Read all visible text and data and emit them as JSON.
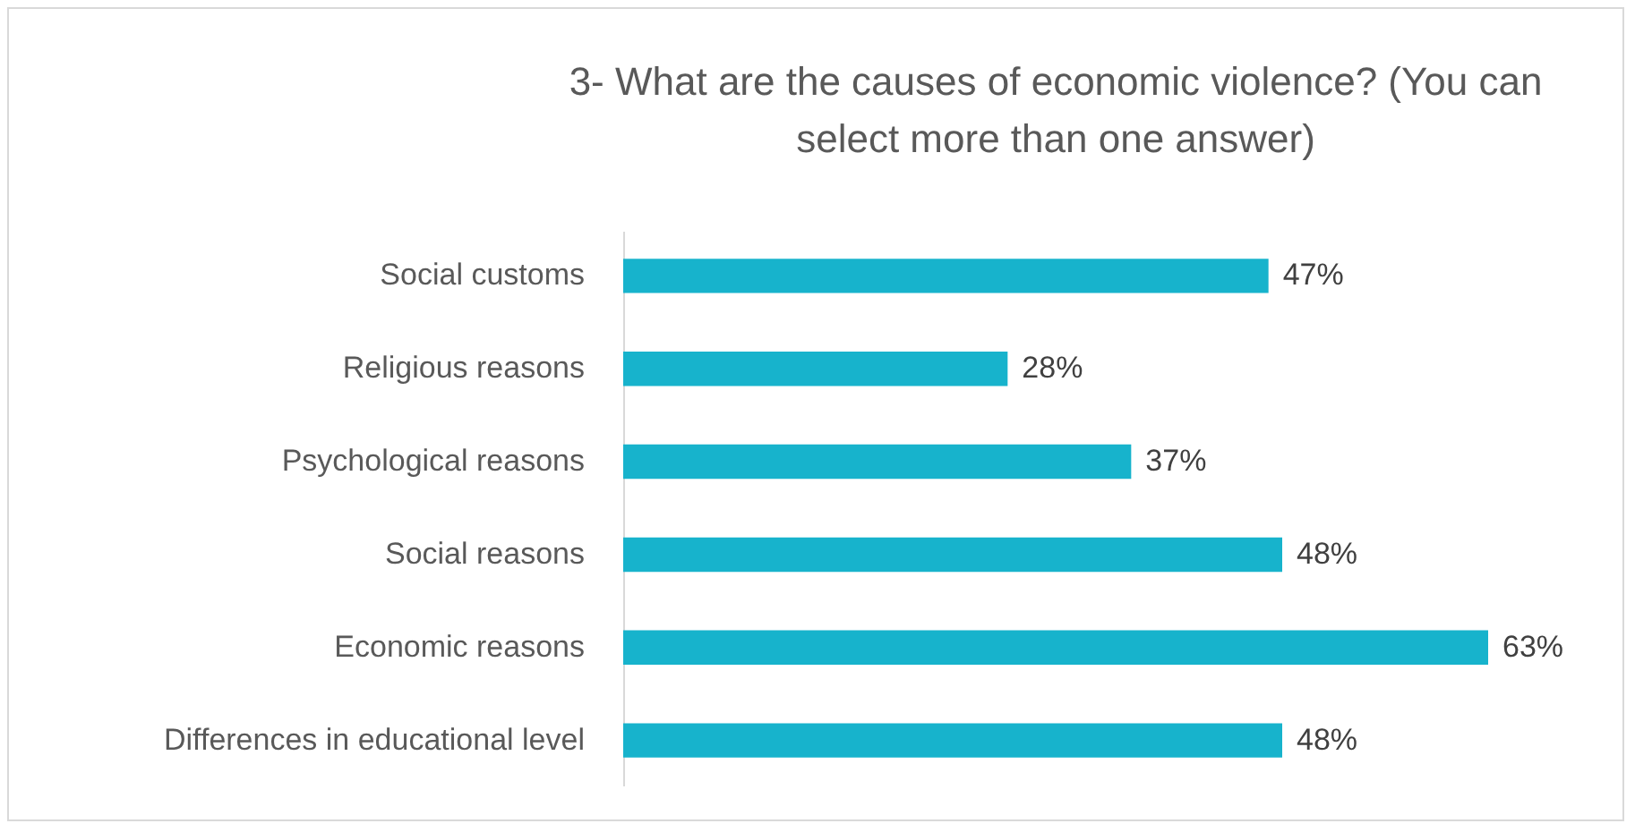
{
  "chart_data": {
    "type": "bar",
    "orientation": "horizontal",
    "title": "3- What are the causes of economic violence? (You can select more than one answer)",
    "categories": [
      "Social customs",
      "Religious reasons",
      "Psychological reasons",
      "Social reasons",
      "Economic reasons",
      "Differences in educational level"
    ],
    "values": [
      47,
      28,
      37,
      48,
      63,
      48
    ],
    "color": "#17b3cc",
    "value_labels": [
      "47%",
      "28%",
      "37%",
      "48%",
      "63%",
      "48%"
    ]
  }
}
